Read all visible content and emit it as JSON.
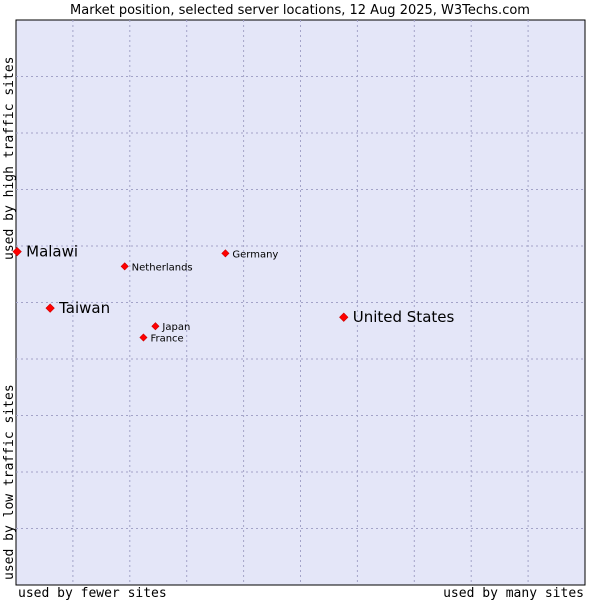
{
  "chart_data": {
    "type": "scatter",
    "title": "Market position, selected server locations, 12 Aug 2025, W3Techs.com",
    "xlabel_left": "used by fewer sites",
    "xlabel_right": "used by many sites",
    "ylabel_top": "used by high traffic sites",
    "ylabel_bottom": "used by low traffic sites",
    "xlim": [
      0,
      100
    ],
    "ylim": [
      0,
      100
    ],
    "grid": true,
    "background_color": "#e4e6f8",
    "grid_color": "#a3a3c8",
    "point_color": "#ff0000",
    "points": [
      {
        "label": "Malawi",
        "x": 0.2,
        "y": 59.0,
        "size": "large"
      },
      {
        "label": "Taiwan",
        "x": 6.0,
        "y": 49.0,
        "size": "large"
      },
      {
        "label": "United States",
        "x": 57.6,
        "y": 47.4,
        "size": "large"
      },
      {
        "label": "Germany",
        "x": 36.8,
        "y": 58.7,
        "size": "small"
      },
      {
        "label": "Netherlands",
        "x": 19.1,
        "y": 56.4,
        "size": "small"
      },
      {
        "label": "Japan",
        "x": 24.5,
        "y": 45.8,
        "size": "small"
      },
      {
        "label": "France",
        "x": 22.4,
        "y": 43.8,
        "size": "small"
      }
    ]
  }
}
